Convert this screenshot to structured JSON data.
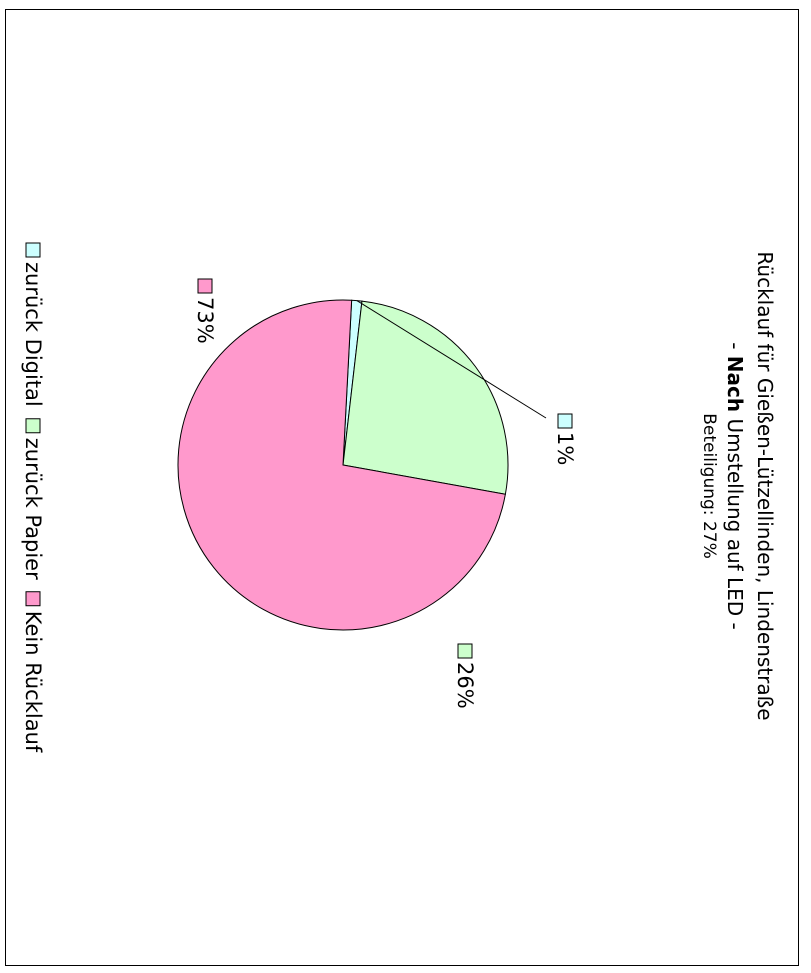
{
  "chart_data": {
    "type": "pie",
    "title_line1": "Rücklauf für Gießen-Lützellinden, Lindenstraße",
    "title_line2_prefix": "-",
    "title_line2_bold": "Nach",
    "title_line2_rest": "Umstellung auf LED -",
    "subtitle": "Beteiligung: 27%",
    "legend_position": "bottom",
    "slices": [
      {
        "name": "zurück Digital",
        "value": 1,
        "label": "1%",
        "color": "#ccffff"
      },
      {
        "name": "zurück Papier",
        "value": 26,
        "label": "26%",
        "color": "#ccffcc"
      },
      {
        "name": "Kein Rücklauf",
        "value": 73,
        "label": "73%",
        "color": "#ff99cc"
      }
    ]
  }
}
